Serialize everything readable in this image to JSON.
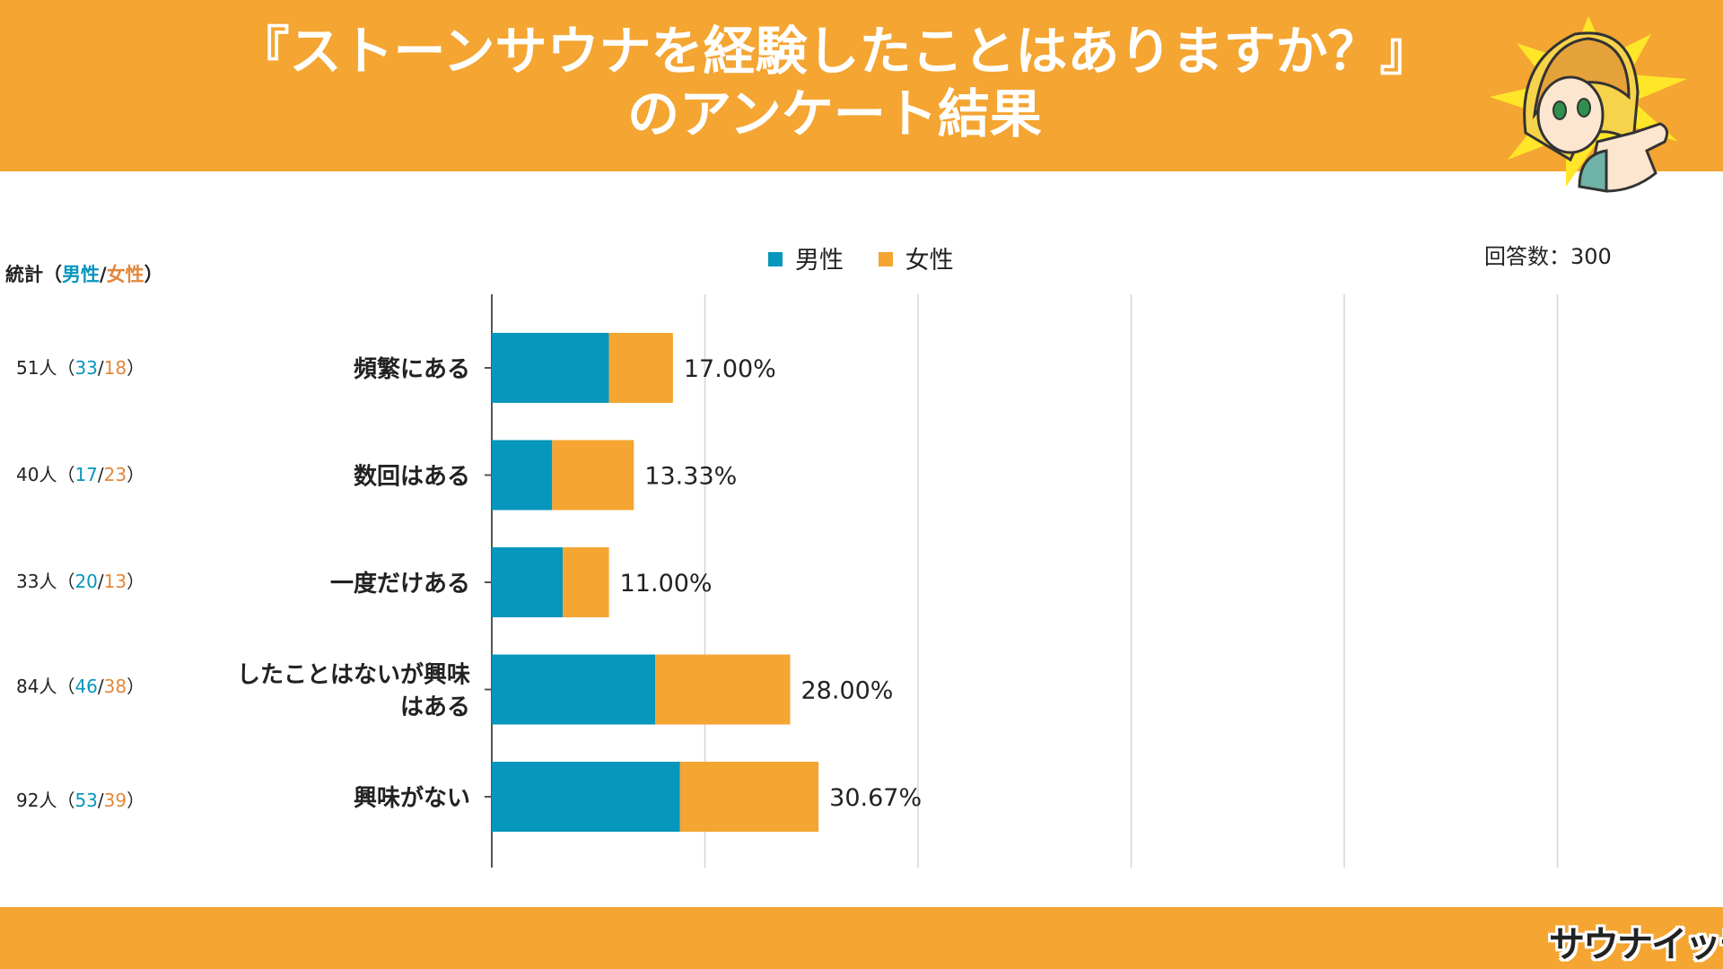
{
  "title": {
    "line1": "『ストーンサウナを経験したことはありますか？』",
    "line2": "のアンケート結果"
  },
  "logo": {
    "text": "サウナイッチ"
  },
  "stats": {
    "header_prefix": "統計（",
    "header_male": "男性",
    "header_slash": "/",
    "header_female": "女性",
    "header_suffix": "）",
    "rows": [
      {
        "total": "51人",
        "male": "33",
        "female": "18"
      },
      {
        "total": "40人",
        "male": "17",
        "female": "23"
      },
      {
        "total": "33人",
        "male": "20",
        "female": "13"
      },
      {
        "total": "84人",
        "male": "46",
        "female": "38"
      },
      {
        "total": "92人",
        "male": "53",
        "female": "39"
      }
    ]
  },
  "respondents": "回答数：300",
  "colors": {
    "male": "#0796bc",
    "female": "#f4a532",
    "band": "#f4a532"
  },
  "chart_data": {
    "type": "bar",
    "orientation": "horizontal",
    "stacked": true,
    "categories": [
      "頻繁にある",
      "数回はある",
      "一度だけある",
      "したことはないが興味はある",
      "興味がない"
    ],
    "category_lines": [
      [
        "頻繁にある"
      ],
      [
        "数回はある"
      ],
      [
        "一度だけある"
      ],
      [
        "したことはないが興味",
        "はある"
      ],
      [
        "興味がない"
      ]
    ],
    "series": [
      {
        "name": "男性",
        "values": [
          33,
          17,
          20,
          46,
          53
        ]
      },
      {
        "name": "女性",
        "values": [
          18,
          23,
          13,
          38,
          39
        ]
      }
    ],
    "data_labels": [
      "17.00%",
      "13.33%",
      "11.00%",
      "28.00%",
      "30.67%"
    ],
    "xlim": [
      0,
      100
    ],
    "grid": true,
    "legend": "top-center"
  }
}
